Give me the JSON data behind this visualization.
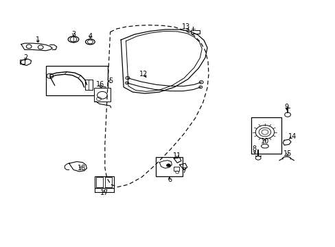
{
  "bg_color": "#ffffff",
  "fig_width": 4.89,
  "fig_height": 3.6,
  "dpi": 100,
  "door_outline_x": [
    0.335,
    0.36,
    0.395,
    0.44,
    0.49,
    0.535,
    0.57,
    0.6,
    0.625,
    0.638,
    0.64,
    0.635,
    0.62,
    0.595,
    0.555,
    0.505,
    0.455,
    0.41,
    0.375,
    0.348,
    0.33,
    0.318,
    0.312,
    0.31,
    0.31,
    0.315,
    0.325,
    0.335
  ],
  "door_outline_y": [
    0.87,
    0.882,
    0.89,
    0.895,
    0.895,
    0.89,
    0.878,
    0.858,
    0.83,
    0.795,
    0.75,
    0.7,
    0.645,
    0.585,
    0.52,
    0.455,
    0.39,
    0.33,
    0.285,
    0.258,
    0.248,
    0.255,
    0.275,
    0.32,
    0.4,
    0.51,
    0.66,
    0.87
  ],
  "color": "#000000"
}
